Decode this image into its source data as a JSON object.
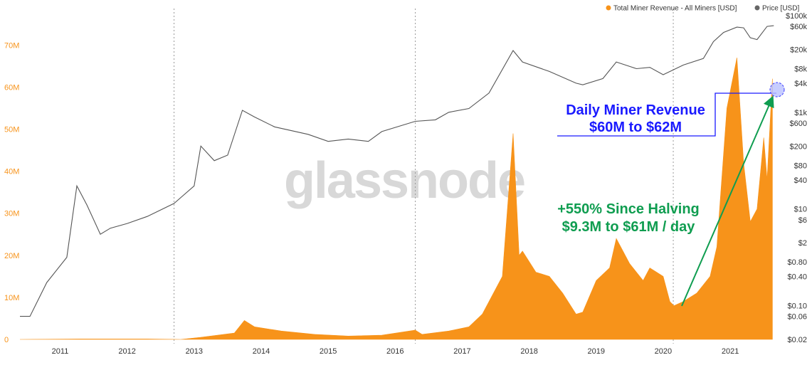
{
  "chart_data": {
    "type": "area",
    "title": "",
    "legend": {
      "placement": "top-right",
      "entries": [
        {
          "name": "Total Miner Revenue - All Miners [USD]",
          "color": "#f7931a"
        },
        {
          "name": "Price [USD]",
          "color": "#666666"
        }
      ]
    },
    "watermark": "glassnode",
    "x_ticks": [
      "2011",
      "2012",
      "2013",
      "2014",
      "2015",
      "2016",
      "2017",
      "2018",
      "2019",
      "2020",
      "2021"
    ],
    "x_range": [
      2010.6,
      2021.9
    ],
    "halving_lines": [
      2012.9,
      2016.5,
      2020.35
    ],
    "y_left": {
      "range": [
        0,
        77000000
      ],
      "ticks": [
        {
          "value": 0,
          "label": "0"
        },
        {
          "value": 10000000,
          "label": "10M"
        },
        {
          "value": 20000000,
          "label": "20M"
        },
        {
          "value": 30000000,
          "label": "30M"
        },
        {
          "value": 40000000,
          "label": "40M"
        },
        {
          "value": 50000000,
          "label": "50M"
        },
        {
          "value": 60000000,
          "label": "60M"
        },
        {
          "value": 70000000,
          "label": "70M"
        }
      ]
    },
    "y_right": {
      "scale": "log",
      "range": [
        0.02,
        100000
      ],
      "ticks": [
        {
          "value": 100000,
          "label": "$100k"
        },
        {
          "value": 60000,
          "label": "$60k"
        },
        {
          "value": 20000,
          "label": "$20k"
        },
        {
          "value": 8000,
          "label": "$8k"
        },
        {
          "value": 4000,
          "label": "$4k"
        },
        {
          "value": 1000,
          "label": "$1k"
        },
        {
          "value": 600,
          "label": "$600"
        },
        {
          "value": 200,
          "label": "$200"
        },
        {
          "value": 80,
          "label": "$80"
        },
        {
          "value": 40,
          "label": "$40"
        },
        {
          "value": 10,
          "label": "$10"
        },
        {
          "value": 6,
          "label": "$6"
        },
        {
          "value": 2,
          "label": "$2"
        },
        {
          "value": 0.8,
          "label": "$0.80"
        },
        {
          "value": 0.4,
          "label": "$0.40"
        },
        {
          "value": 0.1,
          "label": "$0.10"
        },
        {
          "value": 0.06,
          "label": "$0.06"
        },
        {
          "value": 0.02,
          "label": "$0.02"
        }
      ]
    },
    "series": [
      {
        "name": "Total Miner Revenue - All Miners [USD]",
        "axis": "left",
        "x": [
          2010.6,
          2011.5,
          2012.5,
          2013.0,
          2013.3,
          2013.8,
          2013.95,
          2014.1,
          2014.5,
          2015.0,
          2015.5,
          2016.0,
          2016.5,
          2016.6,
          2017.0,
          2017.3,
          2017.5,
          2017.8,
          2017.96,
          2018.05,
          2018.1,
          2018.3,
          2018.5,
          2018.7,
          2018.9,
          2019.0,
          2019.2,
          2019.4,
          2019.5,
          2019.7,
          2019.9,
          2020.0,
          2020.2,
          2020.3,
          2020.36,
          2020.5,
          2020.7,
          2020.9,
          2021.0,
          2021.15,
          2021.3,
          2021.4,
          2021.5,
          2021.6,
          2021.7,
          2021.75,
          2021.83
        ],
        "y": [
          0,
          100000,
          100000,
          0,
          500000,
          1500000,
          4500000,
          3000000,
          2000000,
          1200000,
          800000,
          1000000,
          2200000,
          1200000,
          2000000,
          3000000,
          6000000,
          15000000,
          49000000,
          20000000,
          21000000,
          16000000,
          15000000,
          11000000,
          6000000,
          6500000,
          14000000,
          17000000,
          24000000,
          18000000,
          14000000,
          17000000,
          15000000,
          9000000,
          8000000,
          9000000,
          11000000,
          15000000,
          22000000,
          55000000,
          67000000,
          42000000,
          28000000,
          31000000,
          48000000,
          38000000,
          62000000
        ]
      },
      {
        "name": "Price [USD]",
        "axis": "right",
        "x": [
          2010.6,
          2010.75,
          2011.0,
          2011.3,
          2011.45,
          2011.6,
          2011.8,
          2011.95,
          2012.2,
          2012.5,
          2012.9,
          2013.2,
          2013.3,
          2013.5,
          2013.7,
          2013.92,
          2014.1,
          2014.4,
          2014.9,
          2015.2,
          2015.5,
          2015.8,
          2016.0,
          2016.5,
          2016.8,
          2017.0,
          2017.3,
          2017.6,
          2017.96,
          2018.1,
          2018.5,
          2018.9,
          2019.0,
          2019.3,
          2019.5,
          2019.8,
          2020.0,
          2020.2,
          2020.5,
          2020.8,
          2020.95,
          2021.1,
          2021.3,
          2021.4,
          2021.5,
          2021.6,
          2021.75,
          2021.85
        ],
        "y": [
          0.06,
          0.06,
          0.3,
          1,
          30,
          12,
          3,
          4,
          5,
          7,
          13,
          30,
          200,
          100,
          130,
          1100,
          800,
          500,
          350,
          250,
          280,
          250,
          400,
          650,
          700,
          1000,
          1200,
          2500,
          19000,
          11000,
          7000,
          4000,
          3700,
          5000,
          11000,
          8000,
          8500,
          6000,
          9500,
          13000,
          29000,
          45000,
          58000,
          56000,
          35000,
          32000,
          60000,
          62000
        ]
      }
    ],
    "annotations": [
      {
        "text_lines": [
          "Daily Miner Revenue",
          "$60M to $62M"
        ],
        "color": "#1a1aff"
      },
      {
        "text_lines": [
          "+550% Since Halving",
          "$9.3M to $61M / day"
        ],
        "color": "#0f9d50"
      }
    ]
  }
}
